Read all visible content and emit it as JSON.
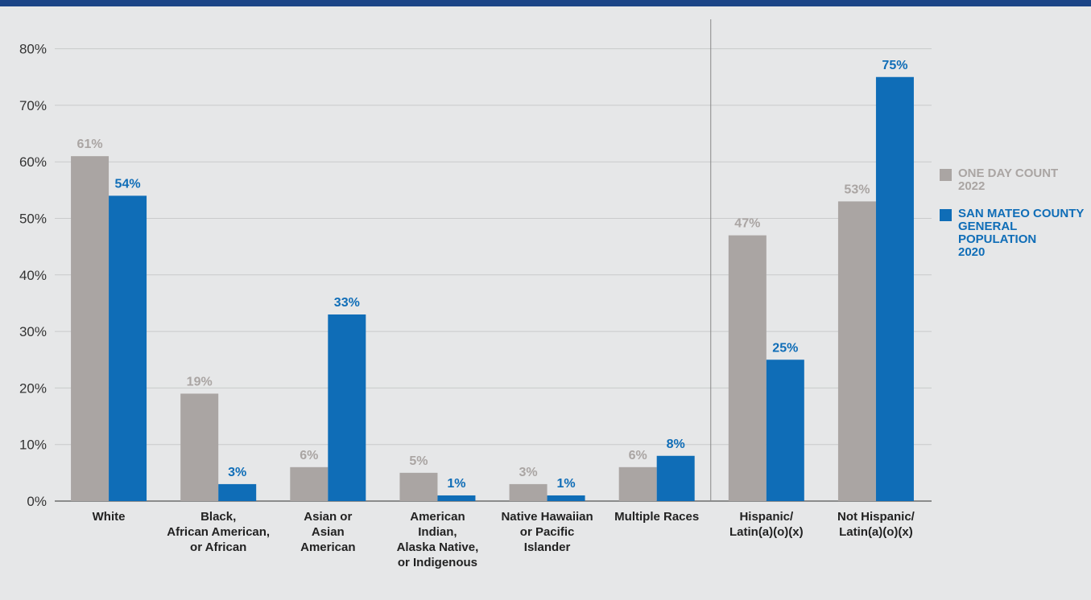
{
  "colors": {
    "gray_series": "#aaa5a3",
    "blue_series": "#0f6db7",
    "background": "#e6e7e8",
    "top_bar": "#1c4587"
  },
  "chart_data": {
    "type": "bar",
    "categories": [
      "White",
      "Black,\nAfrican American,\nor African",
      "Asian or\nAsian\nAmerican",
      "American\nIndian,\nAlaska Native,\nor Indigenous",
      "Native Hawaiian\nor Pacific\nIslander",
      "Multiple Races",
      "Hispanic/\nLatin(a)(o)(x)",
      "Not Hispanic/\nLatin(a)(o)(x)"
    ],
    "series": [
      {
        "name": "ONE DAY COUNT 2022",
        "color": "#aaa5a3",
        "values": [
          61,
          19,
          6,
          5,
          3,
          6,
          47,
          53
        ],
        "labels": [
          "61%",
          "19%",
          "6%",
          "5%",
          "3%",
          "6%",
          "47%",
          "53%"
        ]
      },
      {
        "name": "SAN MATEO COUNTY GENERAL POPULATION 2020",
        "color": "#0f6db7",
        "values": [
          54,
          3,
          33,
          1,
          1,
          8,
          25,
          75
        ],
        "labels": [
          "54%",
          "3%",
          "33%",
          "1%",
          "1%",
          "8%",
          "25%",
          "75%"
        ]
      }
    ],
    "y_ticks": [
      "0%",
      "10%",
      "20%",
      "30%",
      "40%",
      "50%",
      "60%",
      "70%",
      "80%"
    ],
    "ylim": [
      0,
      80
    ],
    "grid": true,
    "legend_position": "right",
    "separator_after_category": 6
  },
  "legend": {
    "item1": "ONE DAY COUNT\n2022",
    "item2": "SAN MATEO COUNTY\nGENERAL\nPOPULATION\n2020"
  }
}
